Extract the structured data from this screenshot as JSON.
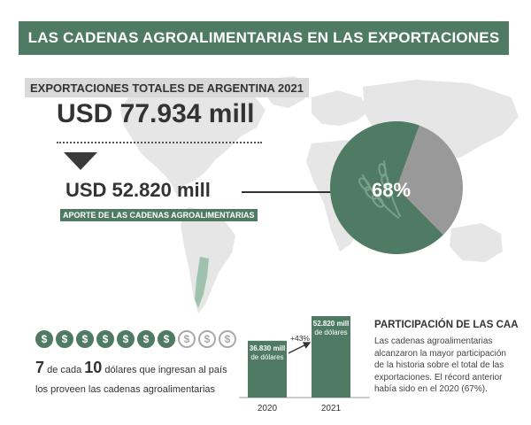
{
  "banner": {
    "title": "LAS CADENAS AGROALIMENTARIAS EN LAS EXPORTACIONES"
  },
  "totals": {
    "label": "EXPORTACIONES TOTALES DE ARGENTINA 2021",
    "value": "USD 77.934 mill"
  },
  "caa": {
    "value": "USD 52.820 mill",
    "label": "APORTE DE LAS CADENAS AGROALIMENTARIAS",
    "percent_label": "68%",
    "share": 68
  },
  "colors": {
    "accent": "#4f7b64",
    "grey": "#999999",
    "light_grey": "#d9d9d9"
  },
  "icons": {
    "map": "world-map-icon",
    "wheat": "wheat-icon",
    "coin": "dollar-coin-icon"
  },
  "coins": {
    "total": 10,
    "filled": 7,
    "symbol": "$"
  },
  "ratio": {
    "num": "7",
    "word_de": "de cada",
    "den": "10",
    "text_tail": "dólares que ingresan al país",
    "line2": "los proveen las cadenas agroalimentarias"
  },
  "bars": {
    "items": [
      {
        "year": "2020",
        "value": 36830,
        "label_line1": "36.830 mill",
        "label_line2": "de dólares"
      },
      {
        "year": "2021",
        "value": 52820,
        "label_line1": "52.820 mill",
        "label_line2": "de dólares"
      }
    ],
    "growth": "+43%"
  },
  "participation": {
    "title": "PARTICIPACIÓN DE LAS CAA",
    "lines": [
      "Las cadenas agroalimentarias",
      "alcanzaron la mayor participación",
      "de la historia sobre el total de las",
      "exportaciones. El récord anterior",
      "había sido en el 2020 (67%)."
    ]
  }
}
